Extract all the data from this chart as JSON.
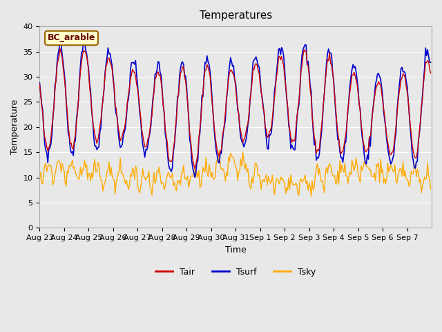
{
  "title": "Temperatures",
  "xlabel": "Time",
  "ylabel": "Temperature",
  "ylim": [
    0,
    40
  ],
  "plot_bg_color": "#e8e8e8",
  "line_colors": {
    "Tair": "#cc0000",
    "Tsurf": "#0000cc",
    "Tsky": "#ffaa00"
  },
  "annotation_text": "BC_arable",
  "annotation_bg": "#ffffcc",
  "annotation_border": "#996600",
  "xtick_labels": [
    "Aug 23",
    "Aug 24",
    "Aug 25",
    "Aug 26",
    "Aug 27",
    "Aug 28",
    "Aug 29",
    "Aug 30",
    "Aug 31",
    "Sep 1",
    "Sep 2",
    "Sep 3",
    "Sep 4",
    "Sep 5",
    "Sep 6",
    "Sep 7"
  ],
  "grid_color": "#ffffff",
  "grid_alpha": 1.0,
  "yticks": [
    0,
    5,
    10,
    15,
    20,
    25,
    30,
    35,
    40
  ]
}
